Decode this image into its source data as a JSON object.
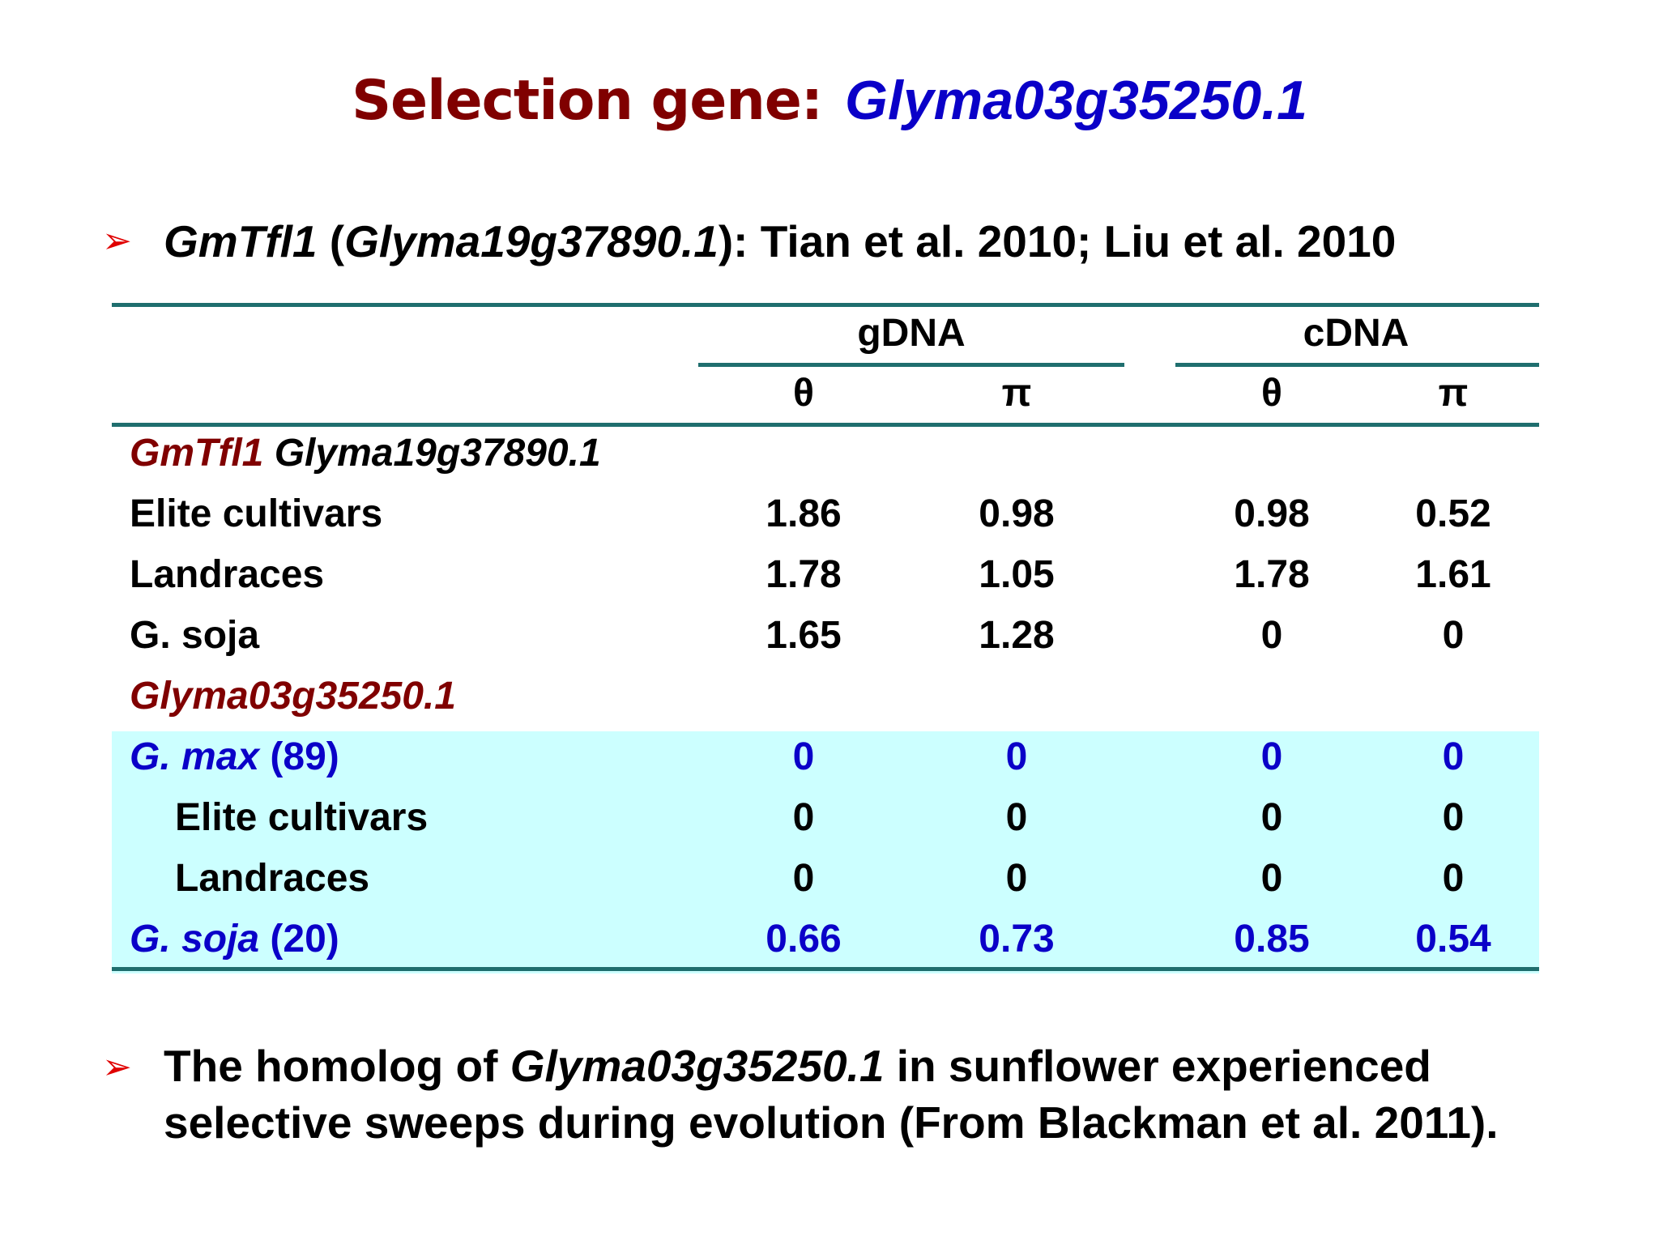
{
  "title": {
    "prefix": "Selection gene:",
    "gene": "Glyma03g35250.1"
  },
  "bullet1": {
    "gene_name": "GmTfl1",
    "open_paren": " (",
    "gene_id": "Glyma19g37890.1",
    "rest": "):  Tian et al. 2010; Liu et al. 2010"
  },
  "table": {
    "group_headers": [
      "gDNA",
      "cDNA"
    ],
    "sub_headers": [
      "θ",
      "π",
      "θ",
      "π"
    ],
    "section1": {
      "gene_name": "GmTfl1",
      "gene_id": " Glyma19g37890.1",
      "rows": [
        {
          "label": "Elite cultivars",
          "values": [
            "1.86",
            "0.98",
            "0.98",
            "0.52"
          ]
        },
        {
          "label": "Landraces",
          "values": [
            "1.78",
            "1.05",
            "1.78",
            "1.61"
          ]
        },
        {
          "label": "G. soja",
          "values": [
            "1.65",
            "1.28",
            "0",
            "0"
          ]
        }
      ]
    },
    "section2": {
      "gene_id": "Glyma03g35250.1",
      "gmax": {
        "species": "G. max",
        "count": " (89)",
        "values": [
          "0",
          "0",
          "0",
          "0"
        ]
      },
      "sub_rows": [
        {
          "label": "Elite cultivars",
          "values": [
            "0",
            "0",
            "0",
            "0"
          ]
        },
        {
          "label": "Landraces",
          "values": [
            "0",
            "0",
            "0",
            "0"
          ]
        }
      ],
      "gsoja": {
        "species": "G. soja",
        "count": " (20)",
        "values": [
          "0.66",
          "0.73",
          "0.85",
          "0.54"
        ]
      }
    }
  },
  "bullet2": {
    "line1_start": "The homolog of ",
    "line1_gene": "Glyma03g35250.1",
    "line1_end": " in sunflower experienced",
    "line2": "selective sweeps during evolution  (From Blackman et al. 2011)."
  },
  "colors": {
    "title_maroon": "#800000",
    "title_blue": "#0a00c8",
    "rule_teal": "#1f6e6e",
    "highlight_cyan": "#ccffff",
    "bullet_red": "#e00000"
  },
  "icons": [
    "arrow-bullet-icon"
  ]
}
